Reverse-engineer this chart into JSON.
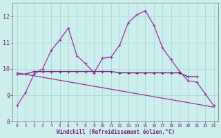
{
  "x": [
    0,
    1,
    2,
    3,
    4,
    5,
    6,
    7,
    8,
    9,
    10,
    11,
    12,
    13,
    14,
    15,
    16,
    17,
    18,
    19,
    20,
    21,
    22,
    23
  ],
  "line1": [
    8.6,
    9.1,
    9.8,
    10.0,
    10.7,
    11.1,
    11.55,
    10.5,
    10.2,
    9.85,
    10.4,
    10.45,
    10.9,
    11.75,
    12.05,
    12.2,
    11.65,
    10.8,
    10.35,
    9.9,
    9.55,
    9.5,
    9.05,
    8.6
  ],
  "line2": [
    9.8,
    9.8,
    9.9,
    9.9,
    9.9,
    9.9,
    9.9,
    9.9,
    9.9,
    9.9,
    9.9,
    9.9,
    9.85,
    9.85,
    9.85,
    9.85,
    9.85,
    9.85,
    9.85,
    9.85,
    9.7,
    9.7
  ],
  "line2_x": [
    0,
    1,
    2,
    3,
    4,
    5,
    6,
    7,
    8,
    9,
    10,
    11,
    12,
    13,
    14,
    15,
    16,
    17,
    18,
    19,
    20,
    21
  ],
  "line3_x": [
    0,
    23
  ],
  "line3": [
    9.85,
    8.55
  ],
  "line_color1": "#9b30a0",
  "line_color2": "#7b2080",
  "line_color3": "#9b30a0",
  "bg_color": "#cceeed",
  "grid_color": "#aadddd",
  "axis_color": "#555555",
  "text_color": "#7b2080",
  "xlabel": "Windchill (Refroidissement éolien,°C)",
  "ylim": [
    8.0,
    12.5
  ],
  "xlim_min": -0.5,
  "xlim_max": 23.5,
  "yticks": [
    8,
    9,
    10,
    11,
    12
  ],
  "xticks": [
    0,
    1,
    2,
    3,
    4,
    5,
    6,
    7,
    8,
    9,
    10,
    11,
    12,
    13,
    14,
    15,
    16,
    17,
    18,
    19,
    20,
    21,
    22,
    23
  ]
}
